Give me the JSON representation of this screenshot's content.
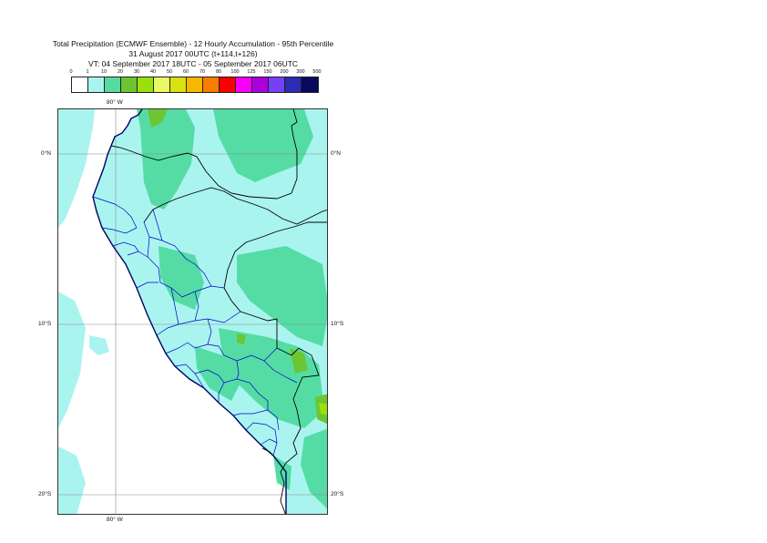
{
  "header": {
    "title_line1": "Total Precipitation (ECMWF Ensemble) - 12 Hourly Accumulation - 95th Percentile",
    "title_line2": "31 August 2017 00UTC (t+114,t+126)",
    "title_line3": "VT: 04 September 2017 18UTC - 05 September 2017 06UTC"
  },
  "legend": {
    "ticks": [
      "0",
      "1",
      "10",
      "20",
      "30",
      "40",
      "50",
      "60",
      "70",
      "80",
      "100",
      "125",
      "150",
      "200",
      "300",
      "500"
    ],
    "colors": [
      "#ffffff",
      "#aaf4ef",
      "#55dca5",
      "#6dc531",
      "#9ae00c",
      "#e7f963",
      "#d7e210",
      "#f5b700",
      "#f57f00",
      "#fb0000",
      "#f700f8",
      "#aa00db",
      "#7640f7",
      "#2b2bb4",
      "#09095d"
    ]
  },
  "map": {
    "lon_labels": {
      "top": "80° W",
      "bottom": "80° W"
    },
    "lat_labels": [
      {
        "label": "0°N",
        "lat": 0
      },
      {
        "label": "10°S",
        "lat": -10
      },
      {
        "label": "20°S",
        "lat": -20
      }
    ],
    "extent": {
      "lon_min": -83.4,
      "lon_max": -67.4,
      "lat_min": -21.2,
      "lat_max": 2.7
    },
    "fill_colors": {
      "ocean": "#ffffff",
      "light": "#aaf4ef",
      "medium": "#55dca5",
      "heavy": "#6dc531",
      "very_heavy": "#9ae00c"
    },
    "line_colors": {
      "coast": "#000066",
      "country": "#000000",
      "province": "#0000cc",
      "grid": "#888888"
    }
  }
}
